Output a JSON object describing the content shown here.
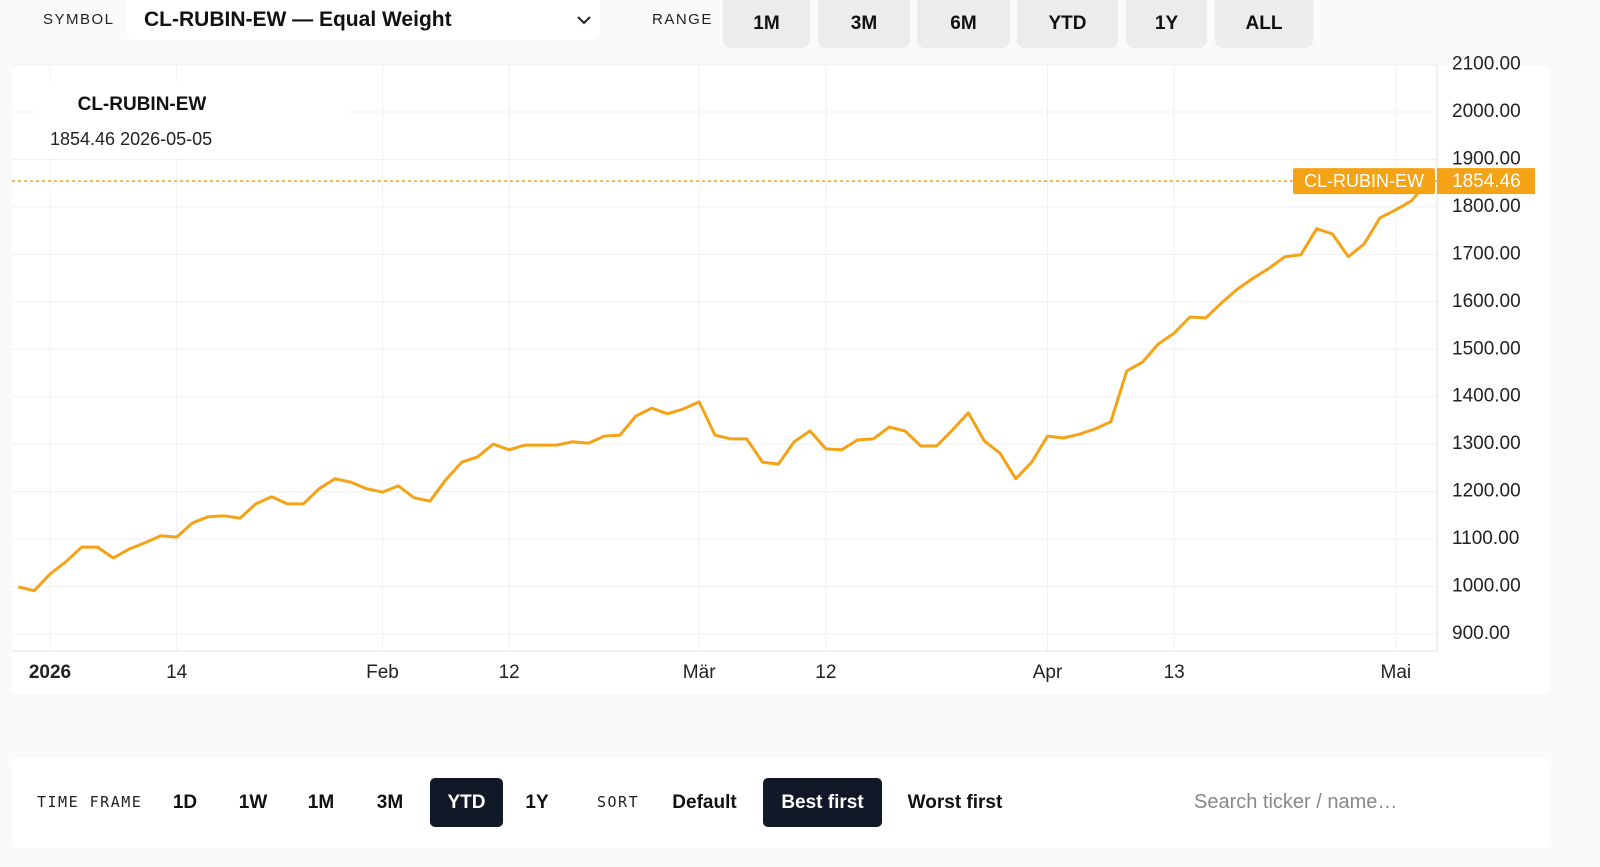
{
  "toolbar": {
    "symbol_label": "SYMBOL",
    "symbol_value": "CL-RUBIN-EW — Equal Weight",
    "range_label": "RANGE",
    "range_buttons": [
      "1M",
      "3M",
      "6M",
      "YTD",
      "1Y",
      "ALL"
    ]
  },
  "chart_data": {
    "type": "line",
    "series": [
      {
        "name": "CL-RUBIN-EW",
        "color": "#f5a316",
        "values": [
          999,
          991,
          1026,
          1052,
          1083,
          1083,
          1060,
          1079,
          1092,
          1107,
          1104,
          1134,
          1147,
          1149,
          1144,
          1174,
          1189,
          1174,
          1174,
          1206,
          1227,
          1220,
          1206,
          1199,
          1212,
          1187,
          1180,
          1225,
          1262,
          1273,
          1300,
          1288,
          1298,
          1298,
          1298,
          1305,
          1302,
          1317,
          1319,
          1359,
          1376,
          1364,
          1374,
          1389,
          1319,
          1311,
          1311,
          1262,
          1258,
          1305,
          1328,
          1290,
          1288,
          1309,
          1311,
          1336,
          1328,
          1296,
          1296,
          1330,
          1366,
          1307,
          1281,
          1227,
          1262,
          1317,
          1313,
          1321,
          1332,
          1347,
          1454,
          1473,
          1511,
          1534,
          1568,
          1566,
          1598,
          1627,
          1650,
          1671,
          1695,
          1699,
          1754,
          1743,
          1695,
          1722,
          1777,
          1794,
          1813,
          1854.46
        ]
      }
    ],
    "last_date": "2026-05-05",
    "xlim": [
      -0.4,
      89.6
    ],
    "xticks": [
      {
        "value": 2,
        "label": "2026"
      },
      {
        "value": 10,
        "label": "14"
      },
      {
        "value": 23,
        "label": "Feb"
      },
      {
        "value": 31,
        "label": "12"
      },
      {
        "value": 43,
        "label": "Mär"
      },
      {
        "value": 51,
        "label": "12"
      },
      {
        "value": 65,
        "label": "Apr"
      },
      {
        "value": 73,
        "label": "13"
      },
      {
        "value": 87,
        "label": "Mai"
      }
    ],
    "ylim": [
      864,
      2097
    ],
    "yticks": [
      {
        "value": 900,
        "label": "900.00"
      },
      {
        "value": 1000,
        "label": "1000.00"
      },
      {
        "value": 1100,
        "label": "1100.00"
      },
      {
        "value": 1200,
        "label": "1200.00"
      },
      {
        "value": 1300,
        "label": "1300.00"
      },
      {
        "value": 1400,
        "label": "1400.00"
      },
      {
        "value": 1500,
        "label": "1500.00"
      },
      {
        "value": 1600,
        "label": "1600.00"
      },
      {
        "value": 1700,
        "label": "1700.00"
      },
      {
        "value": 1800,
        "label": "1800.00"
      },
      {
        "value": 1900,
        "label": "1900.00"
      },
      {
        "value": 2000,
        "label": "2000.00"
      },
      {
        "value": 2100,
        "label": "2100.00"
      }
    ],
    "grid": true
  },
  "filters": {
    "timeframe_label": "TIME FRAME",
    "timeframes": [
      "1D",
      "1W",
      "1M",
      "3M",
      "YTD",
      "1Y"
    ],
    "timeframe_active": 4,
    "sort_label": "SORT",
    "sorts": [
      "Default",
      "Best first",
      "Worst first"
    ],
    "sort_active": 1,
    "search_placeholder": "Search ticker / name…"
  }
}
